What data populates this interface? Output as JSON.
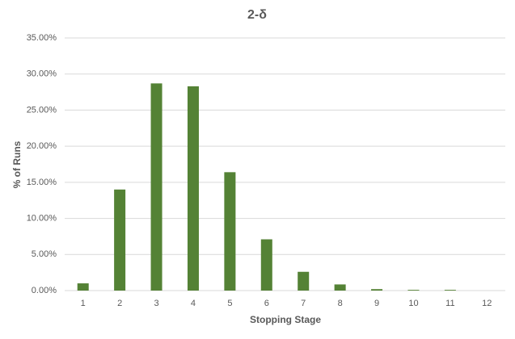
{
  "chart_data": {
    "type": "bar",
    "title": "2-δ",
    "x_label": "Stopping Stage",
    "y_label": "% of Runs",
    "categories": [
      "1",
      "2",
      "3",
      "4",
      "5",
      "6",
      "7",
      "8",
      "9",
      "10",
      "11",
      "12"
    ],
    "values": [
      1.0,
      14.0,
      28.7,
      28.3,
      16.4,
      7.1,
      2.6,
      0.85,
      0.2,
      0.1,
      0.1,
      0
    ],
    "color": "#548235",
    "ylim": [
      0,
      35
    ],
    "yticks": [
      {
        "value": 0,
        "label": "0.00%"
      },
      {
        "value": 5,
        "label": "5.00%"
      },
      {
        "value": 10,
        "label": "10.00%"
      },
      {
        "value": 15,
        "label": "15.00%"
      },
      {
        "value": 20,
        "label": "20.00%"
      },
      {
        "value": 25,
        "label": "25.00%"
      },
      {
        "value": 30,
        "label": "30.00%"
      },
      {
        "value": 35,
        "label": "35.00%"
      }
    ],
    "grid": true
  }
}
